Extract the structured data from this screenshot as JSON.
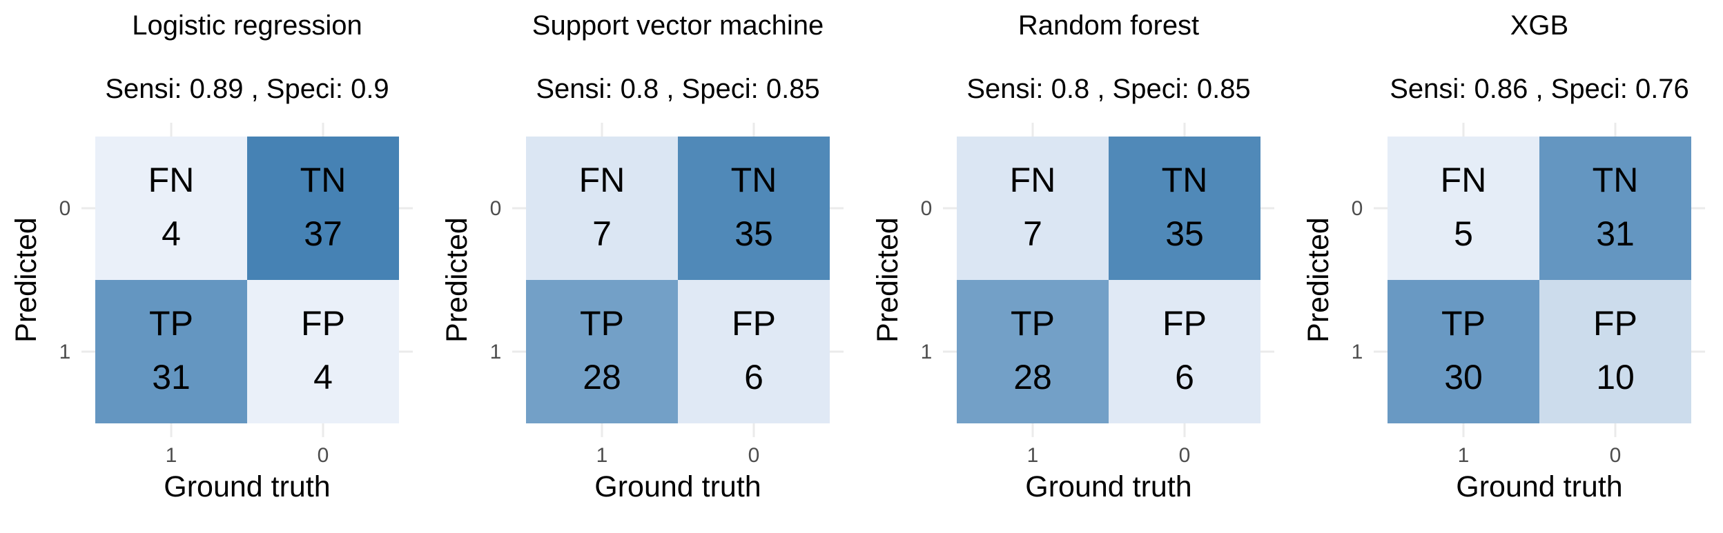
{
  "chart_data": [
    {
      "type": "heatmap",
      "title": "Logistic regression",
      "subtitle": "Sensi: 0.89 , Speci: 0.9",
      "xlabel": "Ground truth",
      "ylabel": "Predicted",
      "x_ticks": [
        "1",
        "0"
      ],
      "y_ticks": [
        "0",
        "1"
      ],
      "cells": [
        {
          "label": "FN",
          "value": 4
        },
        {
          "label": "TN",
          "value": 37
        },
        {
          "label": "TP",
          "value": 31
        },
        {
          "label": "FP",
          "value": 4
        }
      ]
    },
    {
      "type": "heatmap",
      "title": "Support vector machine",
      "subtitle": "Sensi: 0.8 , Speci: 0.85",
      "xlabel": "Ground truth",
      "ylabel": "Predicted",
      "x_ticks": [
        "1",
        "0"
      ],
      "y_ticks": [
        "0",
        "1"
      ],
      "cells": [
        {
          "label": "FN",
          "value": 7
        },
        {
          "label": "TN",
          "value": 35
        },
        {
          "label": "TP",
          "value": 28
        },
        {
          "label": "FP",
          "value": 6
        }
      ]
    },
    {
      "type": "heatmap",
      "title": "Random forest",
      "subtitle": "Sensi: 0.8 , Speci: 0.85",
      "xlabel": "Ground truth",
      "ylabel": "Predicted",
      "x_ticks": [
        "1",
        "0"
      ],
      "y_ticks": [
        "0",
        "1"
      ],
      "cells": [
        {
          "label": "FN",
          "value": 7
        },
        {
          "label": "TN",
          "value": 35
        },
        {
          "label": "TP",
          "value": 28
        },
        {
          "label": "FP",
          "value": 6
        }
      ]
    },
    {
      "type": "heatmap",
      "title": "XGB",
      "subtitle": "Sensi: 0.86 , Speci: 0.76",
      "xlabel": "Ground truth",
      "ylabel": "Predicted",
      "x_ticks": [
        "1",
        "0"
      ],
      "y_ticks": [
        "0",
        "1"
      ],
      "cells": [
        {
          "label": "FN",
          "value": 5
        },
        {
          "label": "TN",
          "value": 31
        },
        {
          "label": "TP",
          "value": 30
        },
        {
          "label": "FP",
          "value": 10
        }
      ]
    }
  ],
  "colors": {
    "low": "#eaf0f9",
    "high": "#4682b4",
    "gridline": "#ebebeb",
    "text": "#000000",
    "tick_text": "#4d4d4d"
  }
}
